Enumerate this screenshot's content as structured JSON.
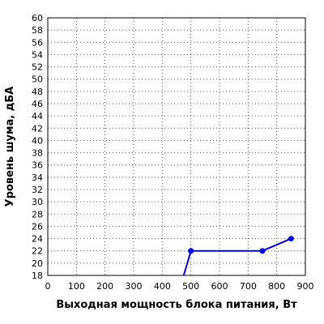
{
  "chart_data": {
    "type": "line",
    "title": "",
    "xlabel": "Выходная мощность блока питания, Вт",
    "ylabel": "Уровень шума, дБА",
    "xlim": [
      0,
      900
    ],
    "ylim": [
      18,
      60
    ],
    "x_ticks": [
      0,
      100,
      200,
      300,
      400,
      500,
      600,
      700,
      800,
      900
    ],
    "y_ticks": [
      18,
      20,
      22,
      24,
      26,
      28,
      30,
      32,
      34,
      36,
      38,
      40,
      42,
      44,
      46,
      48,
      50,
      52,
      54,
      56,
      58,
      60
    ],
    "grid": "dotted",
    "series": [
      {
        "color": "#0000ee",
        "points": [
          {
            "x": 475,
            "y": 18,
            "marker": false
          },
          {
            "x": 500,
            "y": 22,
            "marker": true
          },
          {
            "x": 750,
            "y": 22,
            "marker": true
          },
          {
            "x": 850,
            "y": 24,
            "marker": true
          }
        ]
      }
    ]
  }
}
